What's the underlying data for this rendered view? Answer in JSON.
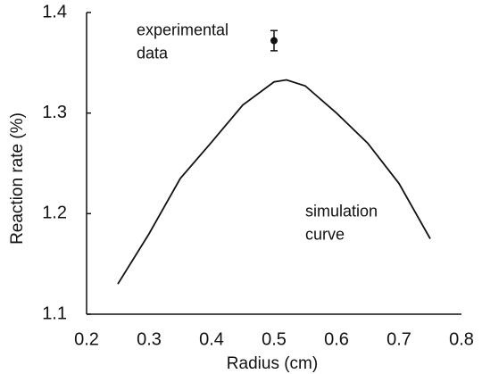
{
  "chart_data": {
    "type": "line",
    "x_label": "Radius (cm)",
    "y_label": "Reaction rate (%)",
    "xlim": [
      0.2,
      0.8
    ],
    "xticks": [
      0.2,
      0.3,
      0.4,
      0.5,
      0.6,
      0.7,
      0.8
    ],
    "ylim": [
      1.1,
      1.4
    ],
    "yticks": [
      1.1,
      1.2,
      1.3,
      1.4
    ],
    "grid": false,
    "series": [
      {
        "color": "#111111",
        "x": [
          0.25,
          0.3,
          0.35,
          0.4,
          0.45,
          0.5,
          0.52,
          0.55,
          0.6,
          0.65,
          0.7,
          0.75
        ],
        "values": [
          1.13,
          1.18,
          1.235,
          1.271,
          1.308,
          1.331,
          1.333,
          1.327,
          1.3,
          1.27,
          1.23,
          1.175
        ]
      }
    ],
    "points": {
      "color": "#111111",
      "x": [
        0.5
      ],
      "values": [
        1.372
      ],
      "errors": [
        0.01
      ]
    },
    "annotations": [
      {
        "lines": [
          "experimental",
          "data"
        ],
        "x": 0.28,
        "y": 1.37
      },
      {
        "lines": [
          "simulation",
          "curve"
        ],
        "x": 0.55,
        "y": 1.19
      }
    ]
  }
}
